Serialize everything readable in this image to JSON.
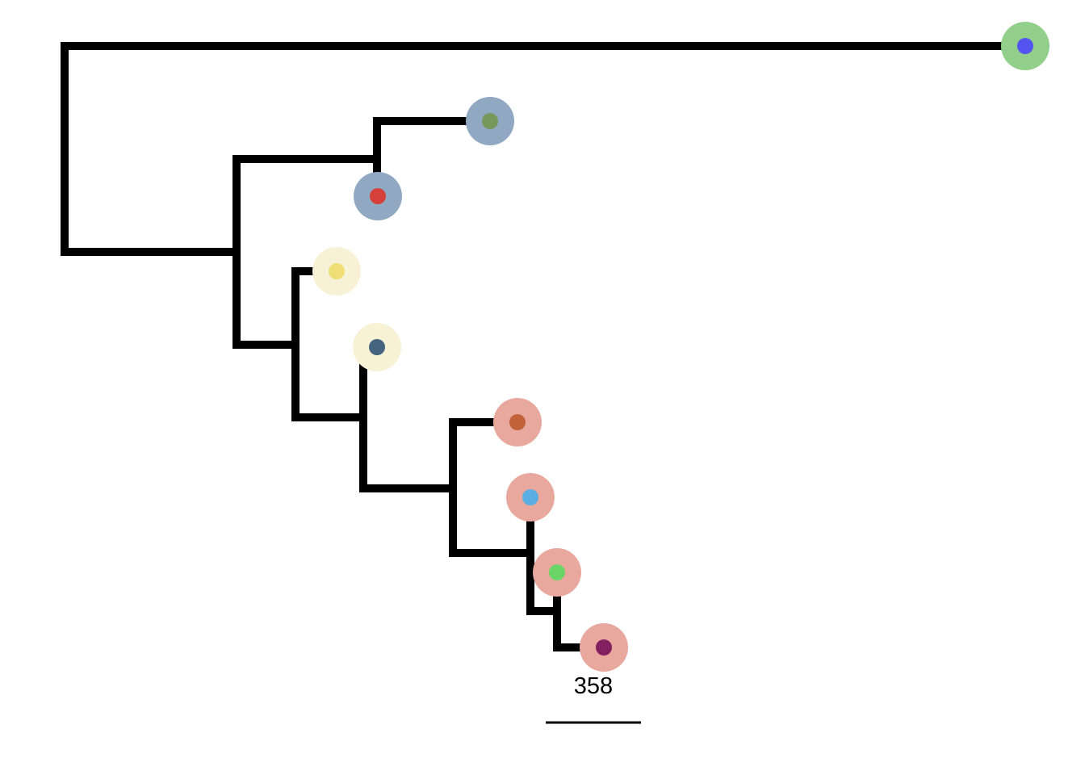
{
  "tree": {
    "tips": [
      {
        "id": "tip-1",
        "ring_color": "#91cf8a",
        "dot_color": "#5454f0"
      },
      {
        "id": "tip-2",
        "ring_color": "#91a8c3",
        "dot_color": "#76995b"
      },
      {
        "id": "tip-3",
        "ring_color": "#91a8c3",
        "dot_color": "#d5403a"
      },
      {
        "id": "tip-4",
        "ring_color": "#f7f1d5",
        "dot_color": "#efde73"
      },
      {
        "id": "tip-5",
        "ring_color": "#f7f1d5",
        "dot_color": "#44647f"
      },
      {
        "id": "tip-6",
        "ring_color": "#e8a89d",
        "dot_color": "#c2623b"
      },
      {
        "id": "tip-7",
        "ring_color": "#e8a89d",
        "dot_color": "#5aaee1"
      },
      {
        "id": "tip-8",
        "ring_color": "#e8a89d",
        "dot_color": "#6ad466"
      },
      {
        "id": "tip-9",
        "ring_color": "#e8a89d",
        "dot_color": "#83205f"
      }
    ],
    "branch_color": "#000000"
  },
  "scale_bar": {
    "label": "358"
  }
}
